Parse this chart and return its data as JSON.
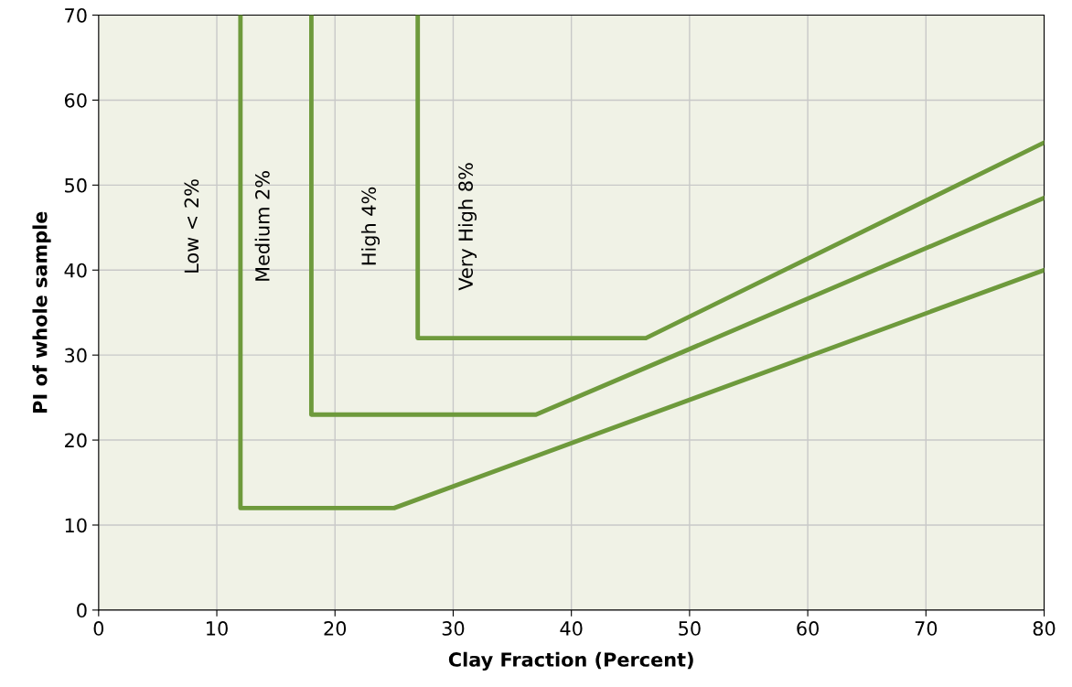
{
  "chart_data": {
    "type": "line",
    "xlabel": "Clay Fraction (Percent)",
    "ylabel": "PI of whole sample",
    "series": [
      {
        "color": "#6e9a3c",
        "x": [
          12,
          12,
          25,
          80
        ],
        "values": [
          70,
          12,
          12,
          40
        ]
      },
      {
        "color": "#6e9a3c",
        "x": [
          18,
          18,
          37,
          80
        ],
        "values": [
          70,
          23,
          23,
          48.5
        ]
      },
      {
        "color": "#6e9a3c",
        "x": [
          27,
          27,
          46.3,
          80
        ],
        "values": [
          70,
          32,
          32,
          55
        ]
      }
    ],
    "annotations": [
      "Low < 2%",
      "Medium 2%",
      "High 4%",
      "Very High 8%"
    ],
    "xlim": [
      0,
      80
    ],
    "xticks": [
      0,
      10,
      20,
      30,
      40,
      50,
      60,
      70,
      80
    ],
    "ylim": [
      0,
      70
    ],
    "yticks": [
      0,
      10,
      20,
      30,
      40,
      50,
      60,
      70
    ],
    "grid": true,
    "line_style": "solid",
    "marker": "none"
  }
}
